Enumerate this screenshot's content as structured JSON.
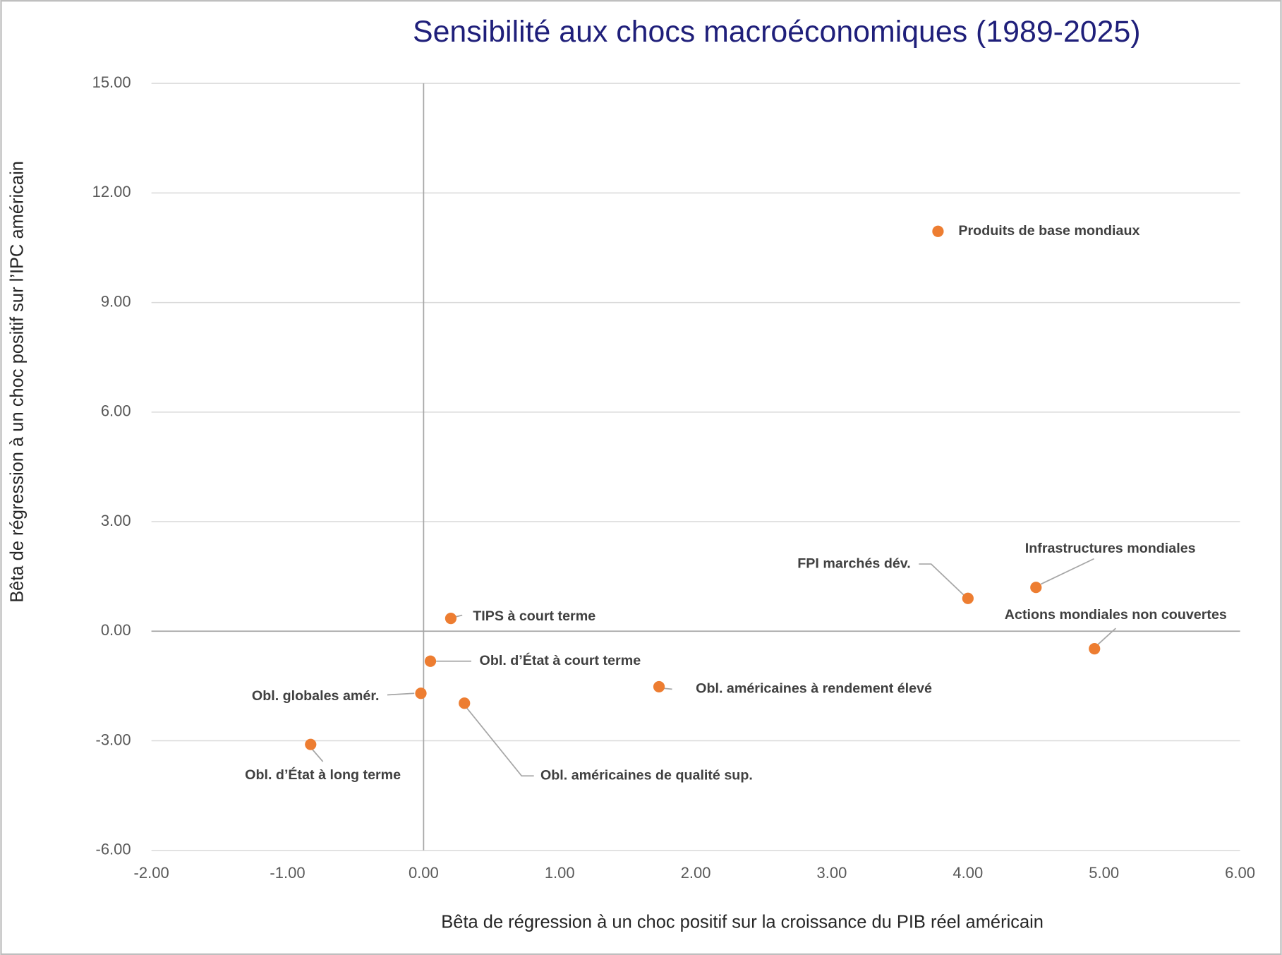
{
  "chart_data": {
    "type": "scatter",
    "title": "Sensibilité aux chocs macroéconomiques (1989-2025)",
    "x_label": "Bêta de régression à un choc positif sur la croissance du PIB réel américain",
    "y_label": "Bêta de régression à un choc positif sur l’IPC américain",
    "point_labels": [
      "Produits de base mondiaux",
      "Infrastructures mondiales",
      "FPI marchés dév.",
      "Actions mondiales non couvertes",
      "TIPS à court terme",
      "Obl. d’État à court terme",
      "Obl. globales amér.",
      "Obl. américaines de qualité sup.",
      "Obl. américaines à rendement élevé",
      "Obl. d’État à long terme"
    ],
    "x": [
      3.78,
      4.5,
      4.0,
      4.93,
      0.2,
      0.05,
      -0.02,
      0.3,
      1.73,
      -0.83
    ],
    "values": [
      10.95,
      1.2,
      0.9,
      -0.48,
      0.35,
      -0.82,
      -1.7,
      -1.97,
      -1.52,
      -3.1
    ],
    "color": "#ed7d31",
    "xlim": [
      -2,
      6
    ],
    "xticks": [
      {
        "value": -2,
        "label": "-2.00"
      },
      {
        "value": -1,
        "label": "-1.00"
      },
      {
        "value": 0,
        "label": "0.00"
      },
      {
        "value": 1,
        "label": "1.00"
      },
      {
        "value": 2,
        "label": "2.00"
      },
      {
        "value": 3,
        "label": "3.00"
      },
      {
        "value": 4,
        "label": "4.00"
      },
      {
        "value": 5,
        "label": "5.00"
      },
      {
        "value": 6,
        "label": "6.00"
      }
    ],
    "ylim": [
      -6,
      15
    ],
    "yticks": [
      {
        "value": -6,
        "label": "-6.00"
      },
      {
        "value": -3,
        "label": "-3.00"
      },
      {
        "value": 0,
        "label": "0.00"
      },
      {
        "value": 3,
        "label": "3.00"
      },
      {
        "value": 6,
        "label": "6.00"
      },
      {
        "value": 9,
        "label": "9.00"
      },
      {
        "value": 12,
        "label": "12.00"
      },
      {
        "value": 15,
        "label": "15.00"
      }
    ],
    "grid": true
  }
}
